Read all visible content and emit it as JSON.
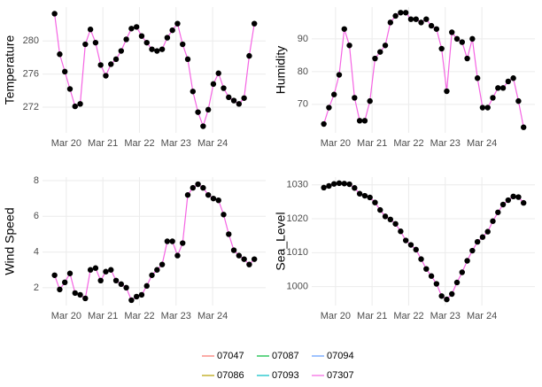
{
  "chart_data": [
    {
      "type": "line",
      "y_label": "Temperature",
      "x": [
        19.68,
        19.82,
        19.96,
        20.1,
        20.24,
        20.38,
        20.52,
        20.66,
        20.8,
        20.94,
        21.08,
        21.22,
        21.36,
        21.5,
        21.64,
        21.78,
        21.92,
        22.06,
        22.2,
        22.34,
        22.48,
        22.62,
        22.76,
        22.9,
        23.04,
        23.18,
        23.32,
        23.46,
        23.6,
        23.74,
        23.88,
        24.02,
        24.16,
        24.3,
        24.44,
        24.58,
        24.72,
        24.86,
        25.0,
        25.14
      ],
      "xlim": [
        19.35,
        25.45
      ],
      "xticks": [
        {
          "value": 20,
          "label": "Mar 20"
        },
        {
          "value": 21,
          "label": "Mar 21"
        },
        {
          "value": 22,
          "label": "Mar 22"
        },
        {
          "value": 23,
          "label": "Mar 23"
        },
        {
          "value": 24,
          "label": "Mar 24"
        }
      ],
      "ylim": [
        268.9,
        284.1
      ],
      "yticks": [
        272,
        276,
        280
      ],
      "grid": true,
      "marker_color": "#000000",
      "series": [
        {
          "name": "07307",
          "color": "#F564E3",
          "values": [
            283.3,
            278.4,
            276.3,
            274.2,
            272.1,
            272.4,
            279.6,
            281.4,
            279.8,
            277.1,
            275.8,
            277.2,
            277.8,
            278.8,
            280.2,
            281.5,
            281.7,
            280.6,
            279.8,
            279.0,
            278.8,
            279.0,
            280.4,
            281.3,
            282.1,
            279.6,
            277.8,
            273.9,
            271.4,
            269.7,
            271.7,
            274.8,
            276.1,
            274.3,
            273.2,
            272.8,
            272.4,
            273.1,
            278.2,
            282.1
          ]
        }
      ]
    },
    {
      "type": "line",
      "y_label": "Humidity",
      "x": [
        19.68,
        19.82,
        19.96,
        20.1,
        20.24,
        20.38,
        20.52,
        20.66,
        20.8,
        20.94,
        21.08,
        21.22,
        21.36,
        21.5,
        21.64,
        21.78,
        21.92,
        22.06,
        22.2,
        22.34,
        22.48,
        22.62,
        22.76,
        22.9,
        23.04,
        23.18,
        23.32,
        23.46,
        23.6,
        23.74,
        23.88,
        24.02,
        24.16,
        24.3,
        24.44,
        24.58,
        24.72,
        24.86,
        25.0,
        25.14
      ],
      "xlim": [
        19.35,
        25.45
      ],
      "xticks": [
        {
          "value": 20,
          "label": "Mar 20"
        },
        {
          "value": 21,
          "label": "Mar 21"
        },
        {
          "value": 22,
          "label": "Mar 22"
        },
        {
          "value": 23,
          "label": "Mar 23"
        },
        {
          "value": 24,
          "label": "Mar 24"
        }
      ],
      "ylim": [
        61.3,
        99.7
      ],
      "yticks": [
        70,
        80,
        90
      ],
      "grid": true,
      "marker_color": "#000000",
      "series": [
        {
          "name": "07307",
          "color": "#F564E3",
          "values": [
            64,
            69,
            73,
            79,
            93,
            88,
            72,
            65,
            65,
            71,
            84,
            86,
            88,
            95,
            97,
            98,
            98,
            96,
            96,
            95,
            96,
            94,
            93,
            87,
            74,
            92,
            90,
            89,
            84,
            90,
            78,
            69,
            69,
            72,
            75,
            75,
            77,
            78,
            71,
            63
          ]
        }
      ]
    },
    {
      "type": "line",
      "y_label": "Wind Speed",
      "x": [
        19.68,
        19.82,
        19.96,
        20.1,
        20.24,
        20.38,
        20.52,
        20.66,
        20.8,
        20.94,
        21.08,
        21.22,
        21.36,
        21.5,
        21.64,
        21.78,
        21.92,
        22.06,
        22.2,
        22.34,
        22.48,
        22.62,
        22.76,
        22.9,
        23.04,
        23.18,
        23.32,
        23.46,
        23.6,
        23.74,
        23.88,
        24.02,
        24.16,
        24.3,
        24.44,
        24.58,
        24.72,
        24.86,
        25.0,
        25.14
      ],
      "xlim": [
        19.35,
        25.45
      ],
      "xticks": [
        {
          "value": 20,
          "label": "Mar 20"
        },
        {
          "value": 21,
          "label": "Mar 21"
        },
        {
          "value": 22,
          "label": "Mar 22"
        },
        {
          "value": 23,
          "label": "Mar 23"
        },
        {
          "value": 24,
          "label": "Mar 24"
        }
      ],
      "ylim": [
        1.0,
        8.2
      ],
      "yticks": [
        2,
        4,
        6,
        8
      ],
      "grid": true,
      "marker_color": "#000000",
      "series": [
        {
          "name": "07307",
          "color": "#F564E3",
          "values": [
            2.7,
            1.9,
            2.3,
            2.8,
            1.7,
            1.6,
            1.4,
            3.0,
            3.1,
            2.4,
            2.9,
            3.0,
            2.4,
            2.2,
            2.0,
            1.3,
            1.5,
            1.6,
            2.1,
            2.7,
            3.0,
            3.3,
            4.6,
            4.6,
            3.8,
            4.5,
            7.2,
            7.6,
            7.8,
            7.6,
            7.2,
            7.0,
            6.9,
            6.1,
            5.0,
            4.1,
            3.8,
            3.6,
            3.3,
            3.6
          ]
        }
      ]
    },
    {
      "type": "line",
      "y_label": "Sea_Level",
      "x": [
        19.68,
        19.82,
        19.96,
        20.1,
        20.24,
        20.38,
        20.52,
        20.66,
        20.8,
        20.94,
        21.08,
        21.22,
        21.36,
        21.5,
        21.64,
        21.78,
        21.92,
        22.06,
        22.2,
        22.34,
        22.48,
        22.62,
        22.76,
        22.9,
        23.04,
        23.18,
        23.32,
        23.46,
        23.6,
        23.74,
        23.88,
        24.02,
        24.16,
        24.3,
        24.44,
        24.58,
        24.72,
        24.86,
        25.0,
        25.14
      ],
      "xlim": [
        19.35,
        25.45
      ],
      "xticks": [
        {
          "value": 20,
          "label": "Mar 20"
        },
        {
          "value": 21,
          "label": "Mar 21"
        },
        {
          "value": 22,
          "label": "Mar 22"
        },
        {
          "value": 23,
          "label": "Mar 23"
        },
        {
          "value": 24,
          "label": "Mar 24"
        }
      ],
      "ylim": [
        994.4,
        1032.3
      ],
      "yticks": [
        1000,
        1010,
        1020,
        1030
      ],
      "grid": true,
      "marker_color": "#000000",
      "series": [
        {
          "name": "07307",
          "color": "#F564E3",
          "values": [
            1029.2,
            1029.7,
            1030.3,
            1030.5,
            1030.4,
            1030.2,
            1029.1,
            1027.4,
            1026.8,
            1026.3,
            1024.8,
            1022.6,
            1020.7,
            1019.8,
            1018.5,
            1016.3,
            1013.6,
            1012.3,
            1010.9,
            1008.1,
            1005.2,
            1003.1,
            1000.8,
            997.2,
            996.2,
            997.8,
            1001.2,
            1004.2,
            1007.6,
            1010.6,
            1013.2,
            1014.6,
            1016.2,
            1019.3,
            1021.9,
            1024.2,
            1025.5,
            1026.6,
            1026.4,
            1024.7
          ]
        }
      ]
    }
  ],
  "legend": {
    "position": "bottom",
    "entries": [
      {
        "name": "07047",
        "color": "#F8766D"
      },
      {
        "name": "07086",
        "color": "#B79F00"
      },
      {
        "name": "07087",
        "color": "#00BA38"
      },
      {
        "name": "07093",
        "color": "#00BFC4"
      },
      {
        "name": "07094",
        "color": "#619CFF"
      },
      {
        "name": "07307",
        "color": "#F564E3"
      }
    ]
  }
}
